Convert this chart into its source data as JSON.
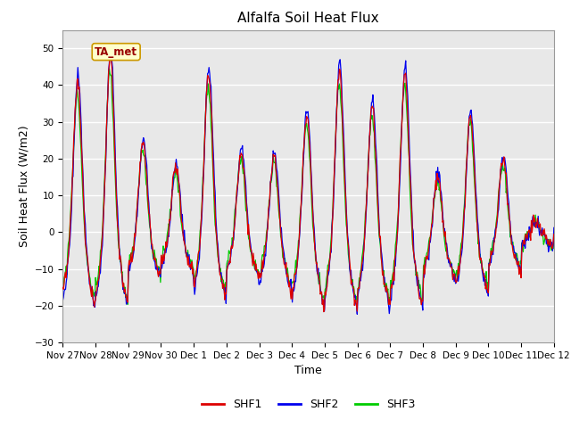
{
  "title": "Alfalfa Soil Heat Flux",
  "ylabel": "Soil Heat Flux (W/m2)",
  "xlabel": "Time",
  "ylim": [
    -30,
    55
  ],
  "yticks": [
    -30,
    -20,
    -10,
    0,
    10,
    20,
    30,
    40,
    50
  ],
  "background_color": "#e8e8e8",
  "grid_color": "white",
  "line_colors": {
    "SHF1": "#dd0000",
    "SHF2": "#0000ee",
    "SHF3": "#00cc00"
  },
  "legend_label": "TA_met",
  "xtick_labels": [
    "Nov 27",
    "Nov 28",
    "Nov 29",
    "Nov 30",
    "Dec 1",
    "Dec 2",
    "Dec 3",
    "Dec 4",
    "Dec 5",
    "Dec 6",
    "Dec 7",
    "Dec 8",
    "Dec 9",
    "Dec 10",
    "Dec 11",
    "Dec 12"
  ],
  "n_days": 15,
  "points_per_day": 48,
  "title_fontsize": 11,
  "axis_label_fontsize": 9,
  "tick_fontsize": 7.5
}
